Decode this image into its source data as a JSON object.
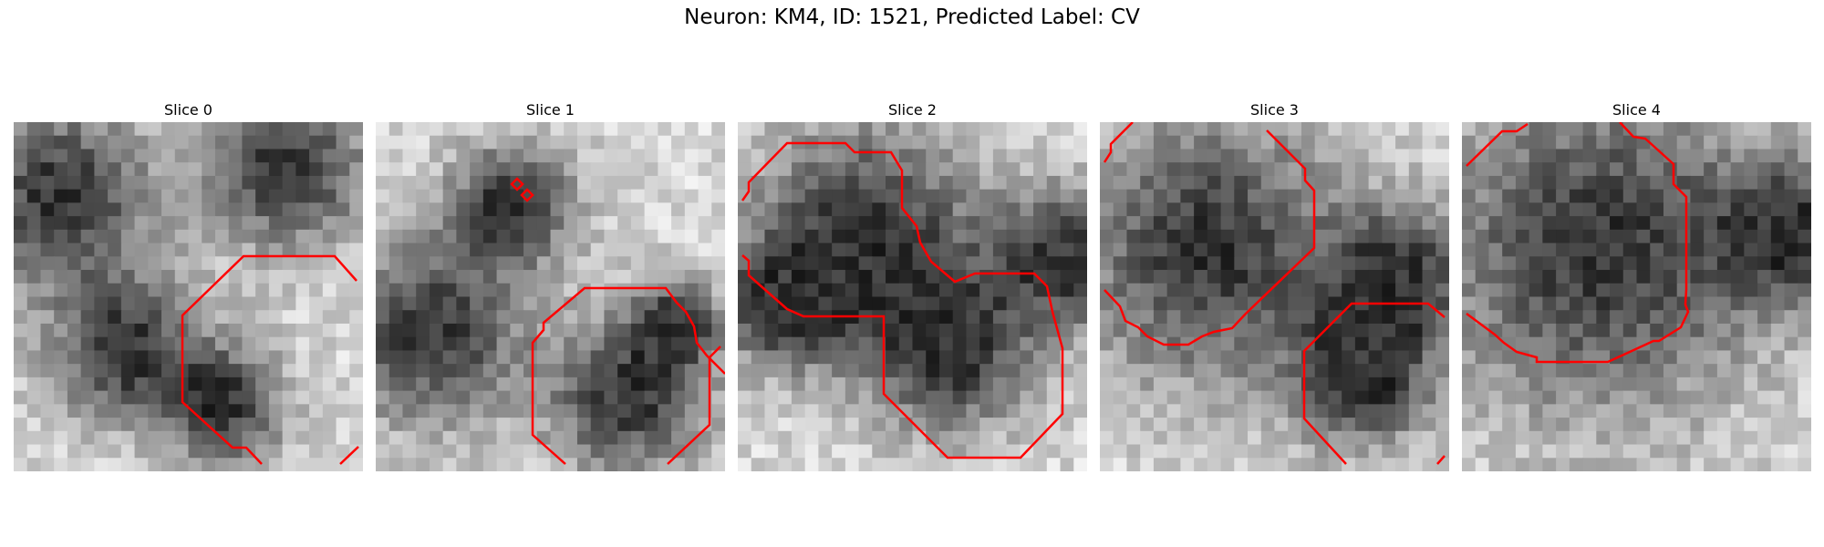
{
  "figure": {
    "title": "Neuron: KM4, ID: 1521, Predicted Label: CV"
  },
  "panels": [
    {
      "title": "Slice 0",
      "contour_color": "#ff0000"
    },
    {
      "title": "Slice 1",
      "contour_color": "#ff0000"
    },
    {
      "title": "Slice 2",
      "contour_color": "#ff0000"
    },
    {
      "title": "Slice 3",
      "contour_color": "#ff0000"
    },
    {
      "title": "Slice 4",
      "contour_color": "#ff0000"
    }
  ],
  "image": {
    "grid_size": 26,
    "colormap": "grayscale"
  }
}
